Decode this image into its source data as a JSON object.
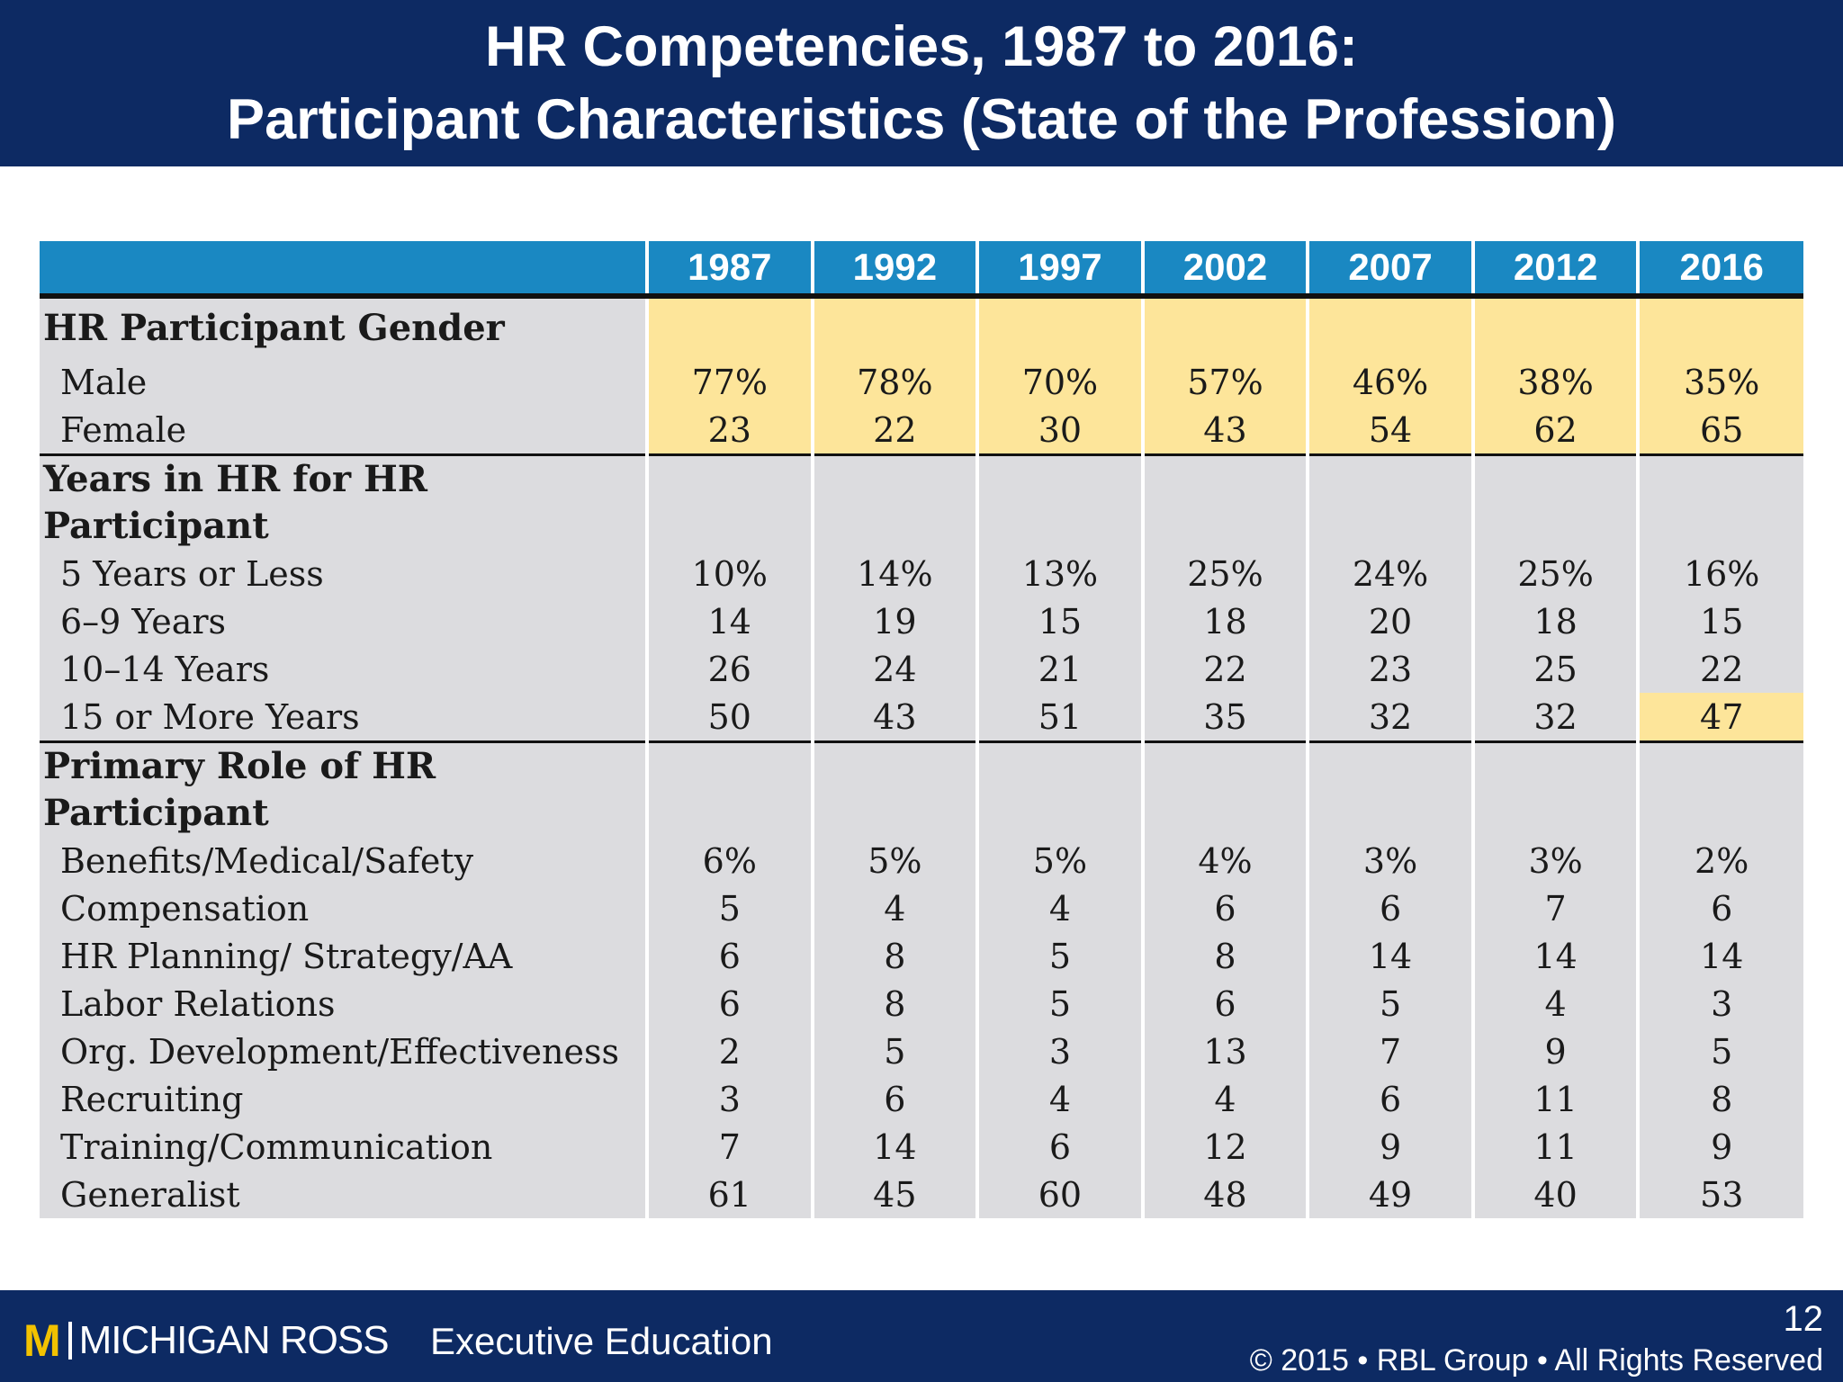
{
  "header": {
    "title_line1": "HR Competencies, 1987 to 2016:",
    "title_line2": "Participant Characteristics (State of the Profession)"
  },
  "table": {
    "years": [
      "1987",
      "1992",
      "1997",
      "2002",
      "2007",
      "2012",
      "2016"
    ],
    "sections": [
      {
        "title": "HR Participant Gender",
        "rows": [
          {
            "label": "Male",
            "values": [
              "77%",
              "78%",
              "70%",
              "57%",
              "46%",
              "38%",
              "35%"
            ]
          },
          {
            "label": "Female",
            "values": [
              "23",
              "22",
              "30",
              "43",
              "54",
              "62",
              "65"
            ]
          }
        ]
      },
      {
        "title": "Years in HR for HR Participant",
        "rows": [
          {
            "label": "5 Years or Less",
            "values": [
              "10%",
              "14%",
              "13%",
              "25%",
              "24%",
              "25%",
              "16%"
            ]
          },
          {
            "label": "6–9 Years",
            "values": [
              "14",
              "19",
              "15",
              "18",
              "20",
              "18",
              "15"
            ]
          },
          {
            "label": "10–14 Years",
            "values": [
              "26",
              "24",
              "21",
              "22",
              "23",
              "25",
              "22"
            ]
          },
          {
            "label": "15 or More Years",
            "values": [
              "50",
              "43",
              "51",
              "35",
              "32",
              "32",
              "47"
            ]
          }
        ]
      },
      {
        "title": "Primary Role of HR Participant",
        "rows": [
          {
            "label": "Benefits/Medical/Safety",
            "values": [
              "6%",
              "5%",
              "5%",
              "4%",
              "3%",
              "3%",
              "2%"
            ]
          },
          {
            "label": "Compensation",
            "values": [
              "5",
              "4",
              "4",
              "6",
              "6",
              "7",
              "6"
            ]
          },
          {
            "label": "HR Planning/ Strategy/AA",
            "values": [
              "6",
              "8",
              "5",
              "8",
              "14",
              "14",
              "14"
            ]
          },
          {
            "label": "Labor Relations",
            "values": [
              "6",
              "8",
              "5",
              "6",
              "5",
              "4",
              "3"
            ]
          },
          {
            "label": "Org. Development/Effectiveness",
            "values": [
              "2",
              "5",
              "3",
              "13",
              "7",
              "9",
              "5"
            ]
          },
          {
            "label": "Recruiting",
            "values": [
              "3",
              "6",
              "4",
              "4",
              "6",
              "11",
              "8"
            ]
          },
          {
            "label": "Training/Communication",
            "values": [
              "7",
              "14",
              "6",
              "12",
              "9",
              "11",
              "9"
            ]
          },
          {
            "label": "Generalist",
            "values": [
              "61",
              "45",
              "60",
              "48",
              "49",
              "40",
              "53"
            ]
          }
        ]
      }
    ]
  },
  "footer": {
    "logo_mark": "M",
    "logo_text": "MICHIGAN ROSS",
    "program": "Executive Education",
    "page_number": "12",
    "copyright": "© 2015 • RBL Group • All Rights Reserved"
  },
  "colors": {
    "header_bg": "#0d2a63",
    "table_header_bg": "#1a88c2",
    "cell_bg": "#dcdcdf",
    "highlight_bg": "#fde59a",
    "logo_gold": "#f2c200"
  }
}
